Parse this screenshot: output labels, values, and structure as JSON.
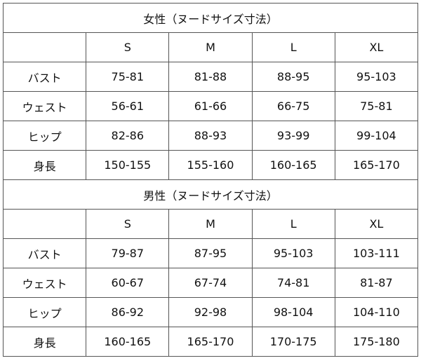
{
  "sections": [
    {
      "title": "女性（ヌードサイズ寸法）",
      "sizes": [
        "S",
        "M",
        "L",
        "XL"
      ],
      "rows": [
        {
          "label": "バスト",
          "values": [
            "75-81",
            "81-88",
            "88-95",
            "95-103"
          ]
        },
        {
          "label": "ウェスト",
          "values": [
            "56-61",
            "61-66",
            "66-75",
            "75-81"
          ]
        },
        {
          "label": "ヒップ",
          "values": [
            "82-86",
            "88-93",
            "93-99",
            "99-104"
          ]
        },
        {
          "label": "身長",
          "values": [
            "150-155",
            "155-160",
            "160-165",
            "165-170"
          ]
        }
      ]
    },
    {
      "title": "男性（ヌードサイズ寸法）",
      "sizes": [
        "S",
        "M",
        "L",
        "XL"
      ],
      "rows": [
        {
          "label": "バスト",
          "values": [
            "79-87",
            "87-95",
            "95-103",
            "103-111"
          ]
        },
        {
          "label": "ウェスト",
          "values": [
            "60-67",
            "67-74",
            "74-81",
            "81-87"
          ]
        },
        {
          "label": "ヒップ",
          "values": [
            "86-92",
            "92-98",
            "98-104",
            "104-110"
          ]
        },
        {
          "label": "身長",
          "values": [
            "160-165",
            "165-170",
            "170-175",
            "175-180"
          ]
        }
      ]
    }
  ]
}
